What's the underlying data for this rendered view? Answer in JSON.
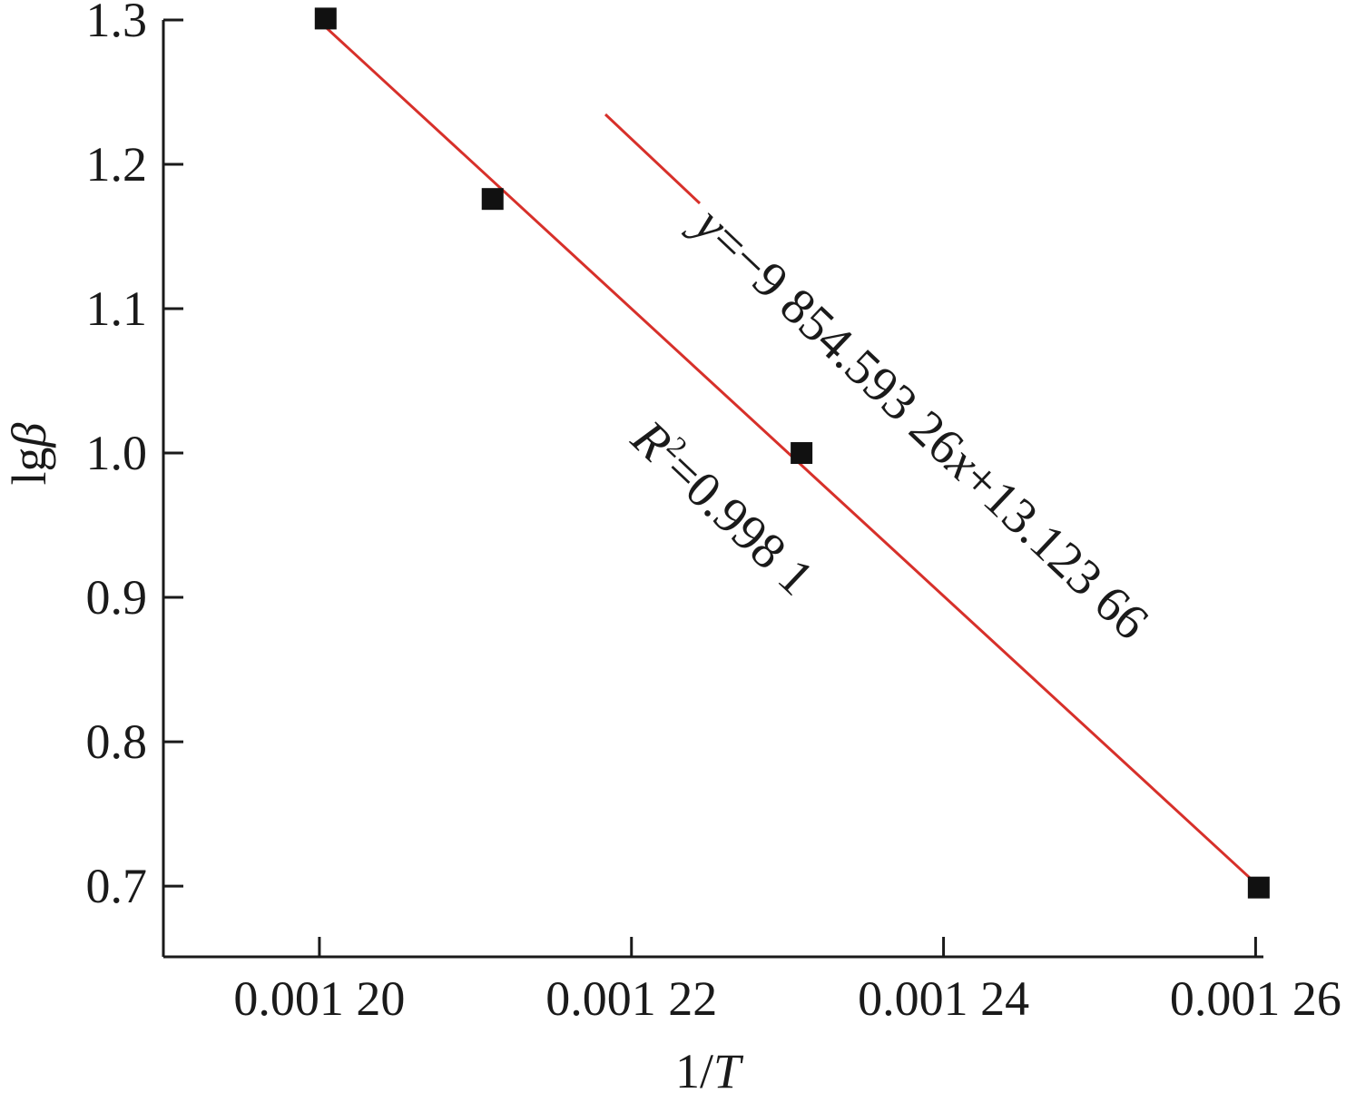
{
  "chart_data": {
    "type": "scatter",
    "title": "",
    "xlabel_parts": [
      "1/",
      "T"
    ],
    "ylabel_parts": [
      "lg",
      "β"
    ],
    "xlim": [
      0.00119,
      0.0012605
    ],
    "ylim": [
      0.651,
      1.3
    ],
    "x_ticks": [
      0.0012,
      0.00122,
      0.00124,
      0.00126
    ],
    "x_tick_labels": [
      "0.001 20",
      "0.001 22",
      "0.001 24",
      "0.001 26"
    ],
    "y_ticks": [
      0.7,
      0.8,
      0.9,
      1.0,
      1.1,
      1.2,
      1.3
    ],
    "y_tick_labels": [
      "0.7",
      "0.8",
      "0.9",
      "1.0",
      "1.1",
      "1.2",
      "1.3"
    ],
    "grid": false,
    "series": [
      {
        "points": [
          {
            "x": 0.0012004,
            "y": 1.301
          },
          {
            "x": 0.0012111,
            "y": 1.176
          },
          {
            "x": 0.0012309,
            "y": 1.0
          },
          {
            "x": 0.0012602,
            "y": 0.699
          }
        ],
        "marker": "square",
        "color": "#111111"
      }
    ],
    "fit_line": {
      "x_range": [
        0.0012004,
        0.0012602
      ],
      "y_range": [
        1.295,
        0.7
      ],
      "color": "#d7302a"
    },
    "annotations": {
      "equation": {
        "pre": "y",
        "rest": "=−9 854.593 26",
        "var": "x",
        "post": "+13.123 66"
      },
      "r_squared": {
        "pre": "R",
        "sup": "2",
        "post": "=0.998 1"
      },
      "leader_color": "#d7302a"
    }
  }
}
